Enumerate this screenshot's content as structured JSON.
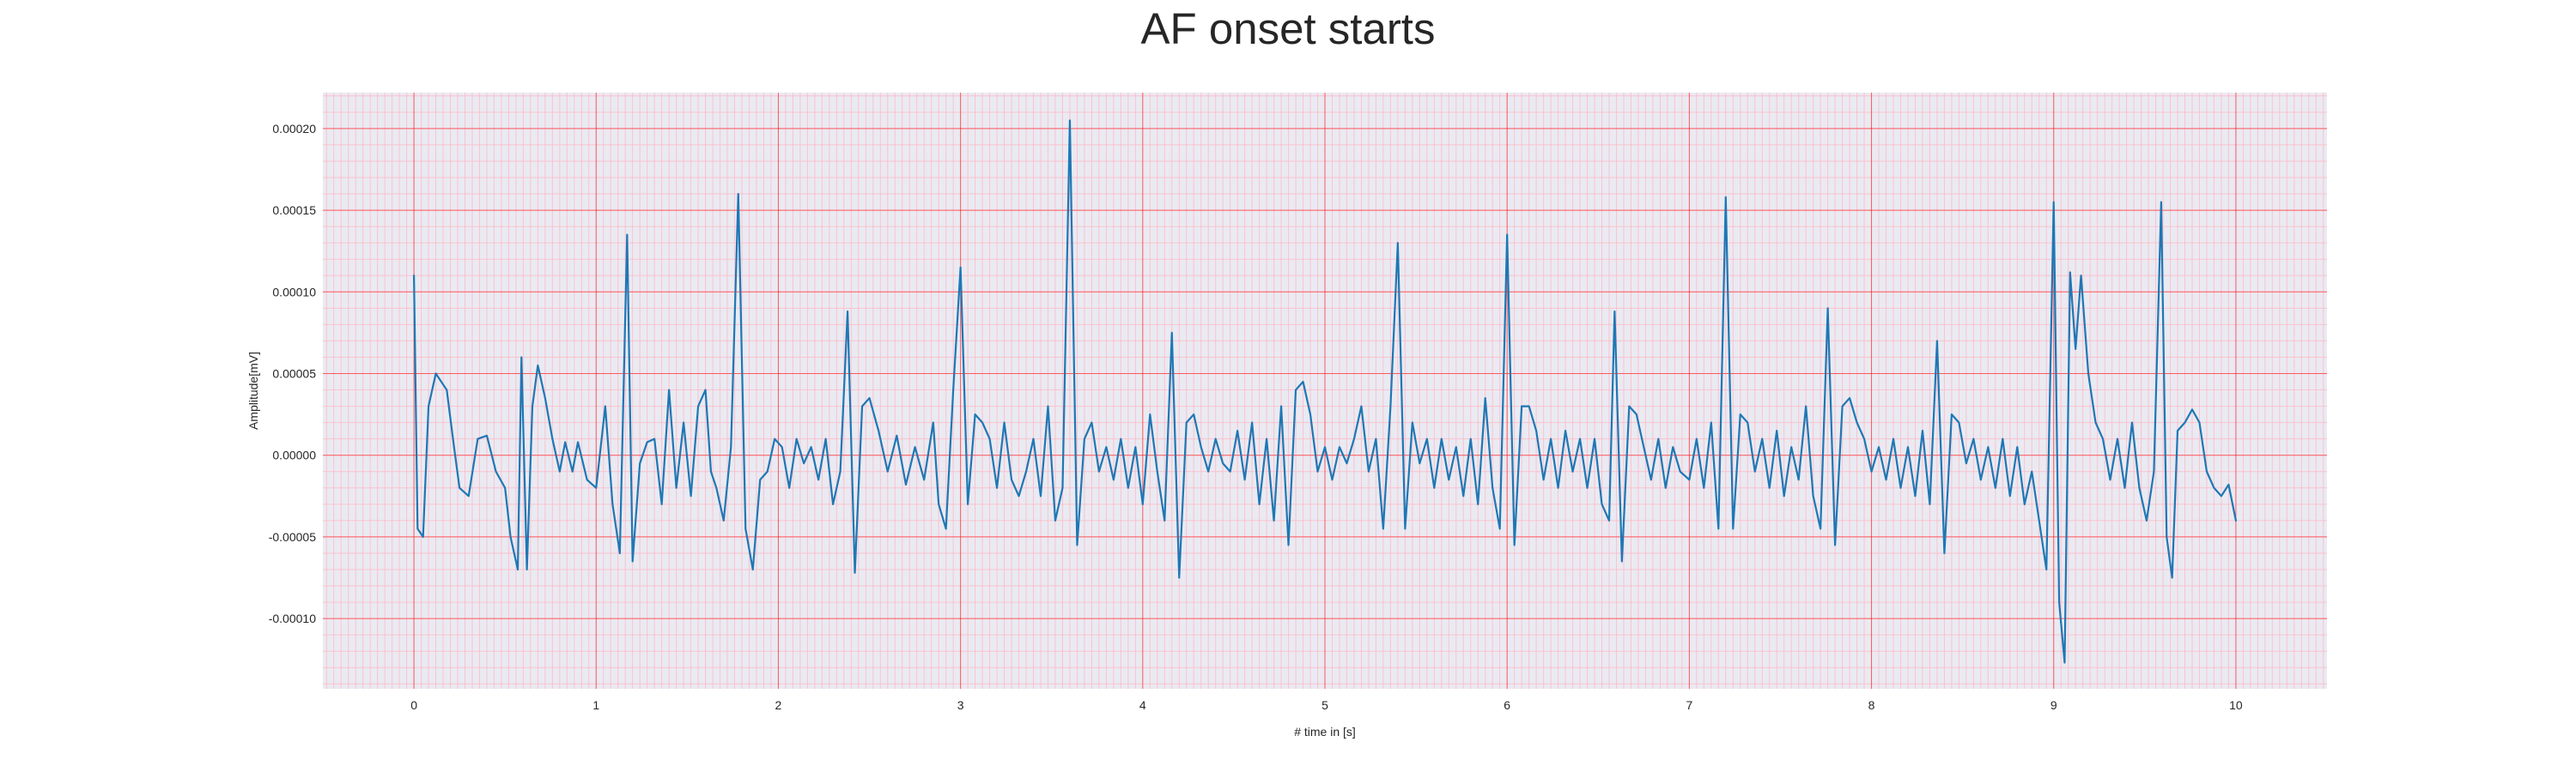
{
  "chart_data": {
    "type": "line",
    "title": "AF onset starts",
    "xlabel": "# time in [s]",
    "ylabel": "Amplitude[mV]",
    "xlim": [
      -0.5,
      10.5
    ],
    "ylim": [
      -0.000143,
      0.000222
    ],
    "x_ticks": [
      0,
      1,
      2,
      3,
      4,
      5,
      6,
      7,
      8,
      9,
      10
    ],
    "x_tick_labels": [
      "0",
      "1",
      "2",
      "3",
      "4",
      "5",
      "6",
      "7",
      "8",
      "9",
      "10"
    ],
    "y_ticks": [
      -0.0001,
      -5e-05,
      0.0,
      5e-05,
      0.0001,
      0.00015,
      0.0002
    ],
    "y_tick_labels": [
      "-0.00010",
      "-0.00005",
      "0.00000",
      "0.00005",
      "0.00010",
      "0.00015",
      "0.00020"
    ],
    "grid": true,
    "series": [
      {
        "color": "#1f77b4",
        "points": [
          [
            0.0,
            0.00011
          ],
          [
            0.02,
            -4.5e-05
          ],
          [
            0.05,
            -5e-05
          ],
          [
            0.08,
            3e-05
          ],
          [
            0.12,
            5e-05
          ],
          [
            0.18,
            4e-05
          ],
          [
            0.22,
            5e-06
          ],
          [
            0.25,
            -2e-05
          ],
          [
            0.3,
            -2.5e-05
          ],
          [
            0.35,
            1e-05
          ],
          [
            0.4,
            1.2e-05
          ],
          [
            0.45,
            -1e-05
          ],
          [
            0.5,
            -2e-05
          ],
          [
            0.53,
            -5e-05
          ],
          [
            0.57,
            -7e-05
          ],
          [
            0.59,
            6e-05
          ],
          [
            0.62,
            -7e-05
          ],
          [
            0.65,
            3e-05
          ],
          [
            0.68,
            5.5e-05
          ],
          [
            0.72,
            3.5e-05
          ],
          [
            0.76,
            1e-05
          ],
          [
            0.8,
            -1e-05
          ],
          [
            0.83,
            8e-06
          ],
          [
            0.87,
            -1e-05
          ],
          [
            0.9,
            8e-06
          ],
          [
            0.95,
            -1.5e-05
          ],
          [
            1.0,
            -2e-05
          ],
          [
            1.05,
            3e-05
          ],
          [
            1.09,
            -3e-05
          ],
          [
            1.13,
            -6e-05
          ],
          [
            1.17,
            0.000135
          ],
          [
            1.2,
            -6.5e-05
          ],
          [
            1.24,
            -5e-06
          ],
          [
            1.28,
            8e-06
          ],
          [
            1.32,
            1e-05
          ],
          [
            1.36,
            -3e-05
          ],
          [
            1.4,
            4e-05
          ],
          [
            1.44,
            -2e-05
          ],
          [
            1.48,
            2e-05
          ],
          [
            1.52,
            -2.5e-05
          ],
          [
            1.56,
            3e-05
          ],
          [
            1.6,
            4e-05
          ],
          [
            1.63,
            -1e-05
          ],
          [
            1.66,
            -2e-05
          ],
          [
            1.7,
            -4e-05
          ],
          [
            1.74,
            5e-06
          ],
          [
            1.78,
            0.00016
          ],
          [
            1.82,
            -4.5e-05
          ],
          [
            1.86,
            -7e-05
          ],
          [
            1.9,
            -1.5e-05
          ],
          [
            1.94,
            -1e-05
          ],
          [
            1.98,
            1e-05
          ],
          [
            2.02,
            5e-06
          ],
          [
            2.06,
            -2e-05
          ],
          [
            2.1,
            1e-05
          ],
          [
            2.14,
            -5e-06
          ],
          [
            2.18,
            5e-06
          ],
          [
            2.22,
            -1.5e-05
          ],
          [
            2.26,
            1e-05
          ],
          [
            2.3,
            -3e-05
          ],
          [
            2.34,
            -1e-05
          ],
          [
            2.38,
            8.8e-05
          ],
          [
            2.42,
            -7.2e-05
          ],
          [
            2.46,
            3e-05
          ],
          [
            2.5,
            3.5e-05
          ],
          [
            2.55,
            1.5e-05
          ],
          [
            2.6,
            -1e-05
          ],
          [
            2.65,
            1.2e-05
          ],
          [
            2.7,
            -1.8e-05
          ],
          [
            2.75,
            5e-06
          ],
          [
            2.8,
            -1.5e-05
          ],
          [
            2.85,
            2e-05
          ],
          [
            2.88,
            -3e-05
          ],
          [
            2.92,
            -4.5e-05
          ],
          [
            2.96,
            4e-05
          ],
          [
            3.0,
            0.000115
          ],
          [
            3.04,
            -3e-05
          ],
          [
            3.08,
            2.5e-05
          ],
          [
            3.12,
            2e-05
          ],
          [
            3.16,
            1e-05
          ],
          [
            3.2,
            -2e-05
          ],
          [
            3.24,
            2e-05
          ],
          [
            3.28,
            -1.5e-05
          ],
          [
            3.32,
            -2.5e-05
          ],
          [
            3.36,
            -1e-05
          ],
          [
            3.4,
            1e-05
          ],
          [
            3.44,
            -2.5e-05
          ],
          [
            3.48,
            3e-05
          ],
          [
            3.52,
            -4e-05
          ],
          [
            3.56,
            -2e-05
          ],
          [
            3.6,
            0.000205
          ],
          [
            3.64,
            -5.5e-05
          ],
          [
            3.68,
            1e-05
          ],
          [
            3.72,
            2e-05
          ],
          [
            3.76,
            -1e-05
          ],
          [
            3.8,
            5e-06
          ],
          [
            3.84,
            -1.5e-05
          ],
          [
            3.88,
            1e-05
          ],
          [
            3.92,
            -2e-05
          ],
          [
            3.96,
            5e-06
          ],
          [
            4.0,
            -3e-05
          ],
          [
            4.04,
            2.5e-05
          ],
          [
            4.08,
            -1e-05
          ],
          [
            4.12,
            -4e-05
          ],
          [
            4.16,
            7.5e-05
          ],
          [
            4.2,
            -7.5e-05
          ],
          [
            4.24,
            2e-05
          ],
          [
            4.28,
            2.5e-05
          ],
          [
            4.32,
            5e-06
          ],
          [
            4.36,
            -1e-05
          ],
          [
            4.4,
            1e-05
          ],
          [
            4.44,
            -5e-06
          ],
          [
            4.48,
            -1e-05
          ],
          [
            4.52,
            1.5e-05
          ],
          [
            4.56,
            -1.5e-05
          ],
          [
            4.6,
            2e-05
          ],
          [
            4.64,
            -3e-05
          ],
          [
            4.68,
            1e-05
          ],
          [
            4.72,
            -4e-05
          ],
          [
            4.76,
            3e-05
          ],
          [
            4.8,
            -5.5e-05
          ],
          [
            4.84,
            4e-05
          ],
          [
            4.88,
            4.5e-05
          ],
          [
            4.92,
            2.5e-05
          ],
          [
            4.96,
            -1e-05
          ],
          [
            5.0,
            5e-06
          ],
          [
            5.04,
            -1.5e-05
          ],
          [
            5.08,
            5e-06
          ],
          [
            5.12,
            -5e-06
          ],
          [
            5.16,
            1e-05
          ],
          [
            5.2,
            3e-05
          ],
          [
            5.24,
            -1e-05
          ],
          [
            5.28,
            1e-05
          ],
          [
            5.32,
            -4.5e-05
          ],
          [
            5.36,
            3e-05
          ],
          [
            5.4,
            0.00013
          ],
          [
            5.44,
            -4.5e-05
          ],
          [
            5.48,
            2e-05
          ],
          [
            5.52,
            -5e-06
          ],
          [
            5.56,
            1e-05
          ],
          [
            5.6,
            -2e-05
          ],
          [
            5.64,
            1e-05
          ],
          [
            5.68,
            -1.5e-05
          ],
          [
            5.72,
            5e-06
          ],
          [
            5.76,
            -2.5e-05
          ],
          [
            5.8,
            1e-05
          ],
          [
            5.84,
            -3e-05
          ],
          [
            5.88,
            3.5e-05
          ],
          [
            5.92,
            -2e-05
          ],
          [
            5.96,
            -4.5e-05
          ],
          [
            6.0,
            0.000135
          ],
          [
            6.04,
            -5.5e-05
          ],
          [
            6.08,
            3e-05
          ],
          [
            6.12,
            3e-05
          ],
          [
            6.16,
            1.5e-05
          ],
          [
            6.2,
            -1.5e-05
          ],
          [
            6.24,
            1e-05
          ],
          [
            6.28,
            -2e-05
          ],
          [
            6.32,
            1.5e-05
          ],
          [
            6.36,
            -1e-05
          ],
          [
            6.4,
            1e-05
          ],
          [
            6.44,
            -2e-05
          ],
          [
            6.48,
            1e-05
          ],
          [
            6.52,
            -3e-05
          ],
          [
            6.56,
            -4e-05
          ],
          [
            6.59,
            8.8e-05
          ],
          [
            6.63,
            -6.5e-05
          ],
          [
            6.67,
            3e-05
          ],
          [
            6.71,
            2.5e-05
          ],
          [
            6.75,
            5e-06
          ],
          [
            6.79,
            -1.5e-05
          ],
          [
            6.83,
            1e-05
          ],
          [
            6.87,
            -2e-05
          ],
          [
            6.91,
            5e-06
          ],
          [
            6.95,
            -1e-05
          ],
          [
            7.0,
            -1.5e-05
          ],
          [
            7.04,
            1e-05
          ],
          [
            7.08,
            -2e-05
          ],
          [
            7.12,
            2e-05
          ],
          [
            7.16,
            -4.5e-05
          ],
          [
            7.2,
            0.000158
          ],
          [
            7.24,
            -4.5e-05
          ],
          [
            7.28,
            2.5e-05
          ],
          [
            7.32,
            2e-05
          ],
          [
            7.36,
            -1e-05
          ],
          [
            7.4,
            1e-05
          ],
          [
            7.44,
            -2e-05
          ],
          [
            7.48,
            1.5e-05
          ],
          [
            7.52,
            -2.5e-05
          ],
          [
            7.56,
            5e-06
          ],
          [
            7.6,
            -1.5e-05
          ],
          [
            7.64,
            3e-05
          ],
          [
            7.68,
            -2.5e-05
          ],
          [
            7.72,
            -4.5e-05
          ],
          [
            7.76,
            9e-05
          ],
          [
            7.8,
            -5.5e-05
          ],
          [
            7.84,
            3e-05
          ],
          [
            7.88,
            3.5e-05
          ],
          [
            7.92,
            2e-05
          ],
          [
            7.96,
            1e-05
          ],
          [
            8.0,
            -1e-05
          ],
          [
            8.04,
            5e-06
          ],
          [
            8.08,
            -1.5e-05
          ],
          [
            8.12,
            1e-05
          ],
          [
            8.16,
            -2e-05
          ],
          [
            8.2,
            5e-06
          ],
          [
            8.24,
            -2.5e-05
          ],
          [
            8.28,
            1.5e-05
          ],
          [
            8.32,
            -3e-05
          ],
          [
            8.36,
            7e-05
          ],
          [
            8.4,
            -6e-05
          ],
          [
            8.44,
            2.5e-05
          ],
          [
            8.48,
            2e-05
          ],
          [
            8.52,
            -5e-06
          ],
          [
            8.56,
            1e-05
          ],
          [
            8.6,
            -1.5e-05
          ],
          [
            8.64,
            5e-06
          ],
          [
            8.68,
            -2e-05
          ],
          [
            8.72,
            1e-05
          ],
          [
            8.76,
            -2.5e-05
          ],
          [
            8.8,
            5e-06
          ],
          [
            8.84,
            -3e-05
          ],
          [
            8.88,
            -1e-05
          ],
          [
            8.92,
            -4e-05
          ],
          [
            8.96,
            -7e-05
          ],
          [
            9.0,
            0.000155
          ],
          [
            9.03,
            -9e-05
          ],
          [
            9.06,
            -0.000127
          ],
          [
            9.09,
            0.000112
          ],
          [
            9.12,
            6.5e-05
          ],
          [
            9.15,
            0.00011
          ],
          [
            9.19,
            5e-05
          ],
          [
            9.23,
            2e-05
          ],
          [
            9.27,
            1e-05
          ],
          [
            9.31,
            -1.5e-05
          ],
          [
            9.35,
            1e-05
          ],
          [
            9.39,
            -2e-05
          ],
          [
            9.43,
            2e-05
          ],
          [
            9.47,
            -2e-05
          ],
          [
            9.51,
            -4e-05
          ],
          [
            9.55,
            -1e-05
          ],
          [
            9.59,
            0.000155
          ],
          [
            9.62,
            -5e-05
          ],
          [
            9.65,
            -7.5e-05
          ],
          [
            9.68,
            1.5e-05
          ],
          [
            9.72,
            2e-05
          ],
          [
            9.76,
            2.8e-05
          ],
          [
            9.8,
            2e-05
          ],
          [
            9.84,
            -1e-05
          ],
          [
            9.88,
            -2e-05
          ],
          [
            9.92,
            -2.5e-05
          ],
          [
            9.96,
            -1.8e-05
          ],
          [
            10.0,
            -4e-05
          ]
        ]
      }
    ]
  }
}
